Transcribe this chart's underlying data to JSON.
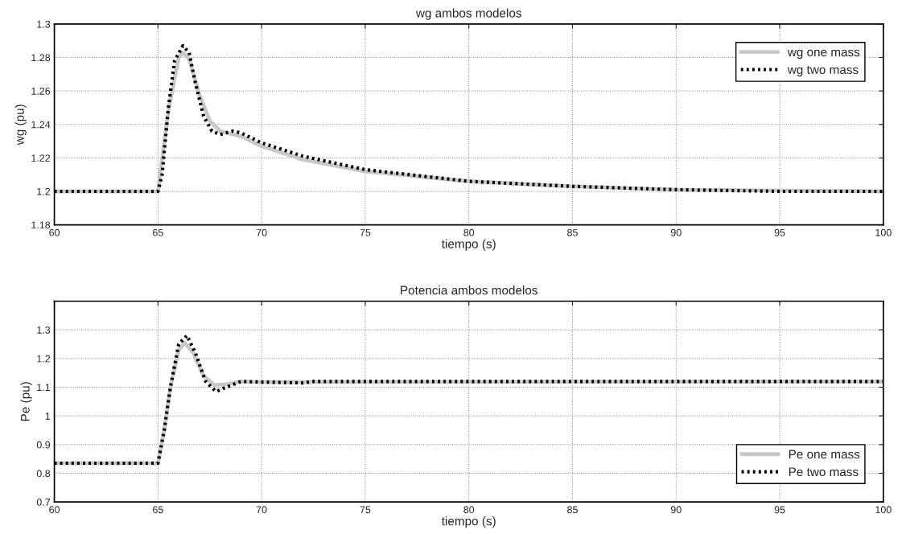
{
  "chart_data": [
    {
      "type": "line",
      "title": "wg ambos modelos",
      "xlabel": "tiempo (s)",
      "ylabel": "wg (pu)",
      "xlim": [
        60,
        100
      ],
      "ylim": [
        1.18,
        1.3
      ],
      "xticks": [
        60,
        65,
        70,
        75,
        80,
        85,
        90,
        95,
        100
      ],
      "yticks": [
        1.18,
        1.2,
        1.22,
        1.24,
        1.26,
        1.28,
        1.3
      ],
      "grid": true,
      "legend": "top right",
      "series": [
        {
          "name": "wg one mass",
          "color": "#c8c8c8",
          "line_style": "solid",
          "x": [
            60,
            65,
            65.5,
            66,
            66.2,
            66.5,
            67,
            67.5,
            68,
            69,
            70,
            72,
            75,
            80,
            85,
            90,
            100
          ],
          "values": [
            1.2,
            1.2,
            1.248,
            1.28,
            1.283,
            1.279,
            1.258,
            1.242,
            1.236,
            1.233,
            1.227,
            1.219,
            1.212,
            1.206,
            1.203,
            1.201,
            1.2
          ]
        },
        {
          "name": "wg two mass",
          "color": "#000000",
          "line_style": "dotted",
          "x": [
            60,
            65,
            65.2,
            65.5,
            65.8,
            66.2,
            66.5,
            66.8,
            67.2,
            67.6,
            68,
            68.6,
            69,
            70,
            72,
            75,
            80,
            85,
            90,
            95,
            100
          ],
          "values": [
            1.2,
            1.2,
            1.21,
            1.25,
            1.278,
            1.287,
            1.283,
            1.265,
            1.245,
            1.236,
            1.234,
            1.236,
            1.235,
            1.229,
            1.221,
            1.213,
            1.206,
            1.203,
            1.201,
            1.2,
            1.2
          ]
        }
      ]
    },
    {
      "type": "line",
      "title": "Potencia ambos modelos",
      "xlabel": "tiempo (s)",
      "ylabel": "Pe (pu)",
      "xlim": [
        60,
        100
      ],
      "ylim": [
        0.7,
        1.4
      ],
      "xticks": [
        60,
        65,
        70,
        75,
        80,
        85,
        90,
        95,
        100
      ],
      "yticks": [
        0.7,
        0.8,
        0.9,
        1,
        1.1,
        1.2,
        1.3
      ],
      "grid": true,
      "legend": "bottom right",
      "series": [
        {
          "name": "Pe one mass",
          "color": "#c8c8c8",
          "line_style": "solid",
          "x": [
            60,
            65,
            65.3,
            65.6,
            66,
            66.3,
            66.7,
            67.2,
            67.7,
            68.3,
            69,
            70,
            100
          ],
          "values": [
            0.835,
            0.835,
            0.95,
            1.1,
            1.23,
            1.255,
            1.22,
            1.14,
            1.108,
            1.11,
            1.12,
            1.118,
            1.12
          ]
        },
        {
          "name": "Pe two mass",
          "color": "#000000",
          "line_style": "dotted",
          "x": [
            60,
            65,
            65.3,
            65.6,
            66,
            66.4,
            66.8,
            67.3,
            67.8,
            68.3,
            69,
            70,
            72,
            72.5,
            100
          ],
          "values": [
            0.835,
            0.835,
            0.95,
            1.1,
            1.25,
            1.28,
            1.22,
            1.12,
            1.085,
            1.1,
            1.12,
            1.118,
            1.115,
            1.12,
            1.12
          ]
        }
      ]
    }
  ]
}
